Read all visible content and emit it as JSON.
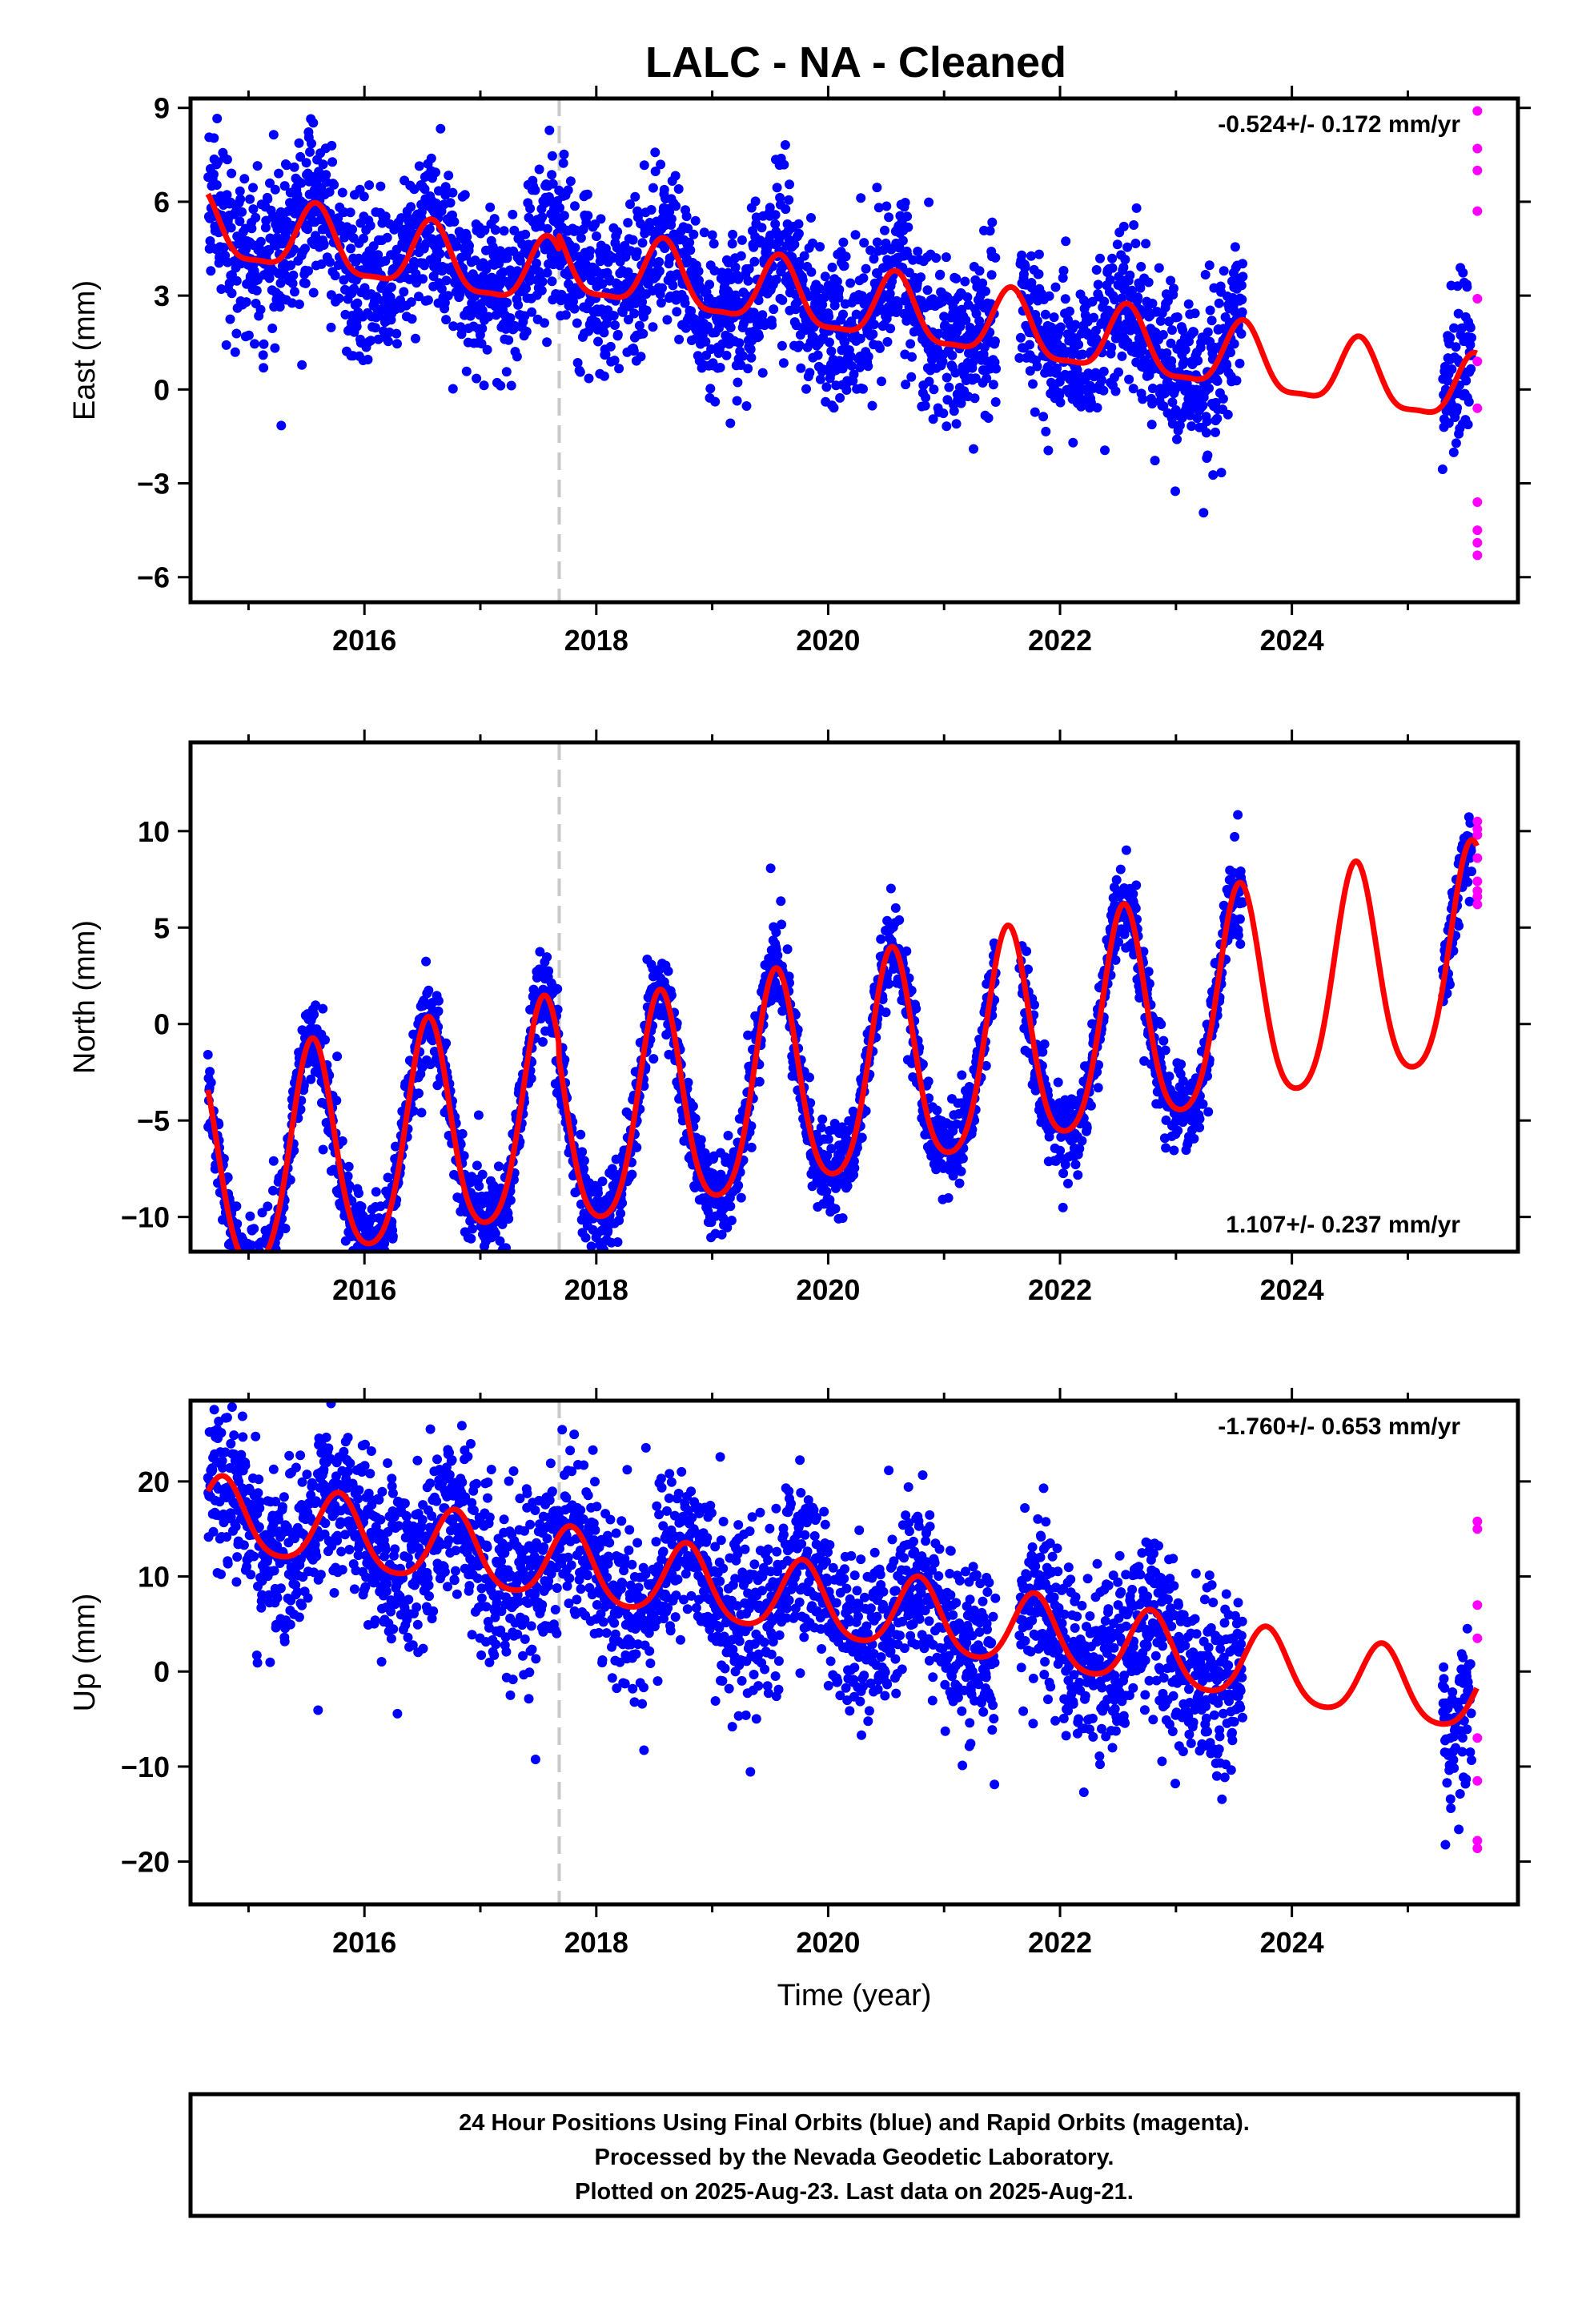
{
  "title": "LALC  - NA - Cleaned",
  "footer": {
    "line1": "24 Hour Positions Using Final Orbits (blue) and Rapid Orbits (magenta).",
    "line2": "Processed by the Nevada Geodetic Laboratory.",
    "line3": "Plotted on 2025-Aug-23. Last data on 2025-Aug-21."
  },
  "colors": {
    "final": "#0000ff",
    "rapid": "#ff00ff",
    "model": "#ff0000",
    "event_line": "#c8c8c8"
  },
  "chart_data": [
    {
      "type": "scatter",
      "panel": "east",
      "ylabel": "East (mm)",
      "xlabel": "",
      "xlim": [
        2014.5,
        2025.95
      ],
      "ylim": [
        -6.8,
        9.3
      ],
      "xticks": [
        2016,
        2018,
        2020,
        2022,
        2024
      ],
      "yticks": [
        -6,
        -3,
        0,
        3,
        6,
        9
      ],
      "rate_label": "-0.524+/- 0.172 mm/yr",
      "rate_position": "top-right",
      "event_line_x": 2017.68,
      "data_segments": [
        [
          2014.65,
          2021.45
        ],
        [
          2021.65,
          2023.58
        ],
        [
          2025.3,
          2025.55
        ]
      ],
      "model": {
        "offset": 2.3,
        "trend": -0.524,
        "annual_amp": 1.05,
        "semiannual_amp": 0.3,
        "phase_year": 0.58,
        "jump_at": 2017.68,
        "jump": 0.45
      },
      "noise_sd": 1.25,
      "rapid_points": {
        "x": [
          2025.6,
          2025.6,
          2025.6,
          2025.6,
          2025.6,
          2025.6,
          2025.6,
          2025.6,
          2025.6,
          2025.6,
          2025.6
        ],
        "y": [
          8.9,
          7.7,
          7.0,
          5.7,
          2.9,
          0.9,
          -0.6,
          -3.6,
          -4.5,
          -4.9,
          -5.3
        ]
      }
    },
    {
      "type": "scatter",
      "panel": "north",
      "ylabel": "North (mm)",
      "xlabel": "",
      "xlim": [
        2014.5,
        2025.95
      ],
      "ylim": [
        -11.8,
        14.6
      ],
      "xticks": [
        2016,
        2018,
        2020,
        2022,
        2024
      ],
      "yticks": [
        -10,
        -5,
        0,
        5,
        10
      ],
      "rate_label": "1.107+/- 0.237 mm/yr",
      "rate_position": "bottom-right",
      "event_line_x": 2017.68,
      "data_segments": [
        [
          2014.65,
          2021.45
        ],
        [
          2021.65,
          2023.58
        ],
        [
          2025.3,
          2025.55
        ]
      ],
      "model": {
        "offset": -2.3,
        "trend": 1.107,
        "annual_amp": 5.6,
        "semiannual_amp": 0.9,
        "phase_year": 0.55,
        "jump_at": 2017.68,
        "jump": -0.8
      },
      "noise_sd": 1.05,
      "rapid_points": {
        "x": [
          2025.6,
          2025.6,
          2025.6,
          2025.6,
          2025.6,
          2025.6,
          2025.6,
          2025.6
        ],
        "y": [
          10.5,
          10.1,
          9.8,
          8.6,
          7.4,
          6.9,
          6.6,
          6.2
        ]
      }
    },
    {
      "type": "scatter",
      "panel": "up",
      "ylabel": "Up (mm)",
      "xlabel": "Time (year)",
      "xlim": [
        2014.5,
        2025.95
      ],
      "ylim": [
        -24.5,
        28.5
      ],
      "xticks": [
        2016,
        2018,
        2020,
        2022,
        2024
      ],
      "yticks": [
        -20,
        -10,
        0,
        10,
        20
      ],
      "rate_label": "-1.760+/- 0.653 mm/yr",
      "rate_position": "top-right",
      "event_line_x": 2017.68,
      "data_segments": [
        [
          2014.65,
          2021.45
        ],
        [
          2021.65,
          2023.58
        ],
        [
          2025.3,
          2025.55
        ]
      ],
      "model": {
        "offset": 7.0,
        "trend": -1.76,
        "annual_amp": 3.8,
        "semiannual_amp": 0.6,
        "phase_year": 0.78,
        "jump_at": 2017.68,
        "jump": 0.0
      },
      "noise_sd": 4.3,
      "rapid_points": {
        "x": [
          2025.6,
          2025.6,
          2025.6,
          2025.6,
          2025.6,
          2025.6,
          2025.6,
          2025.6
        ],
        "y": [
          15.8,
          15.0,
          7.0,
          3.5,
          -7.0,
          -11.5,
          -17.8,
          -18.6
        ]
      }
    }
  ]
}
